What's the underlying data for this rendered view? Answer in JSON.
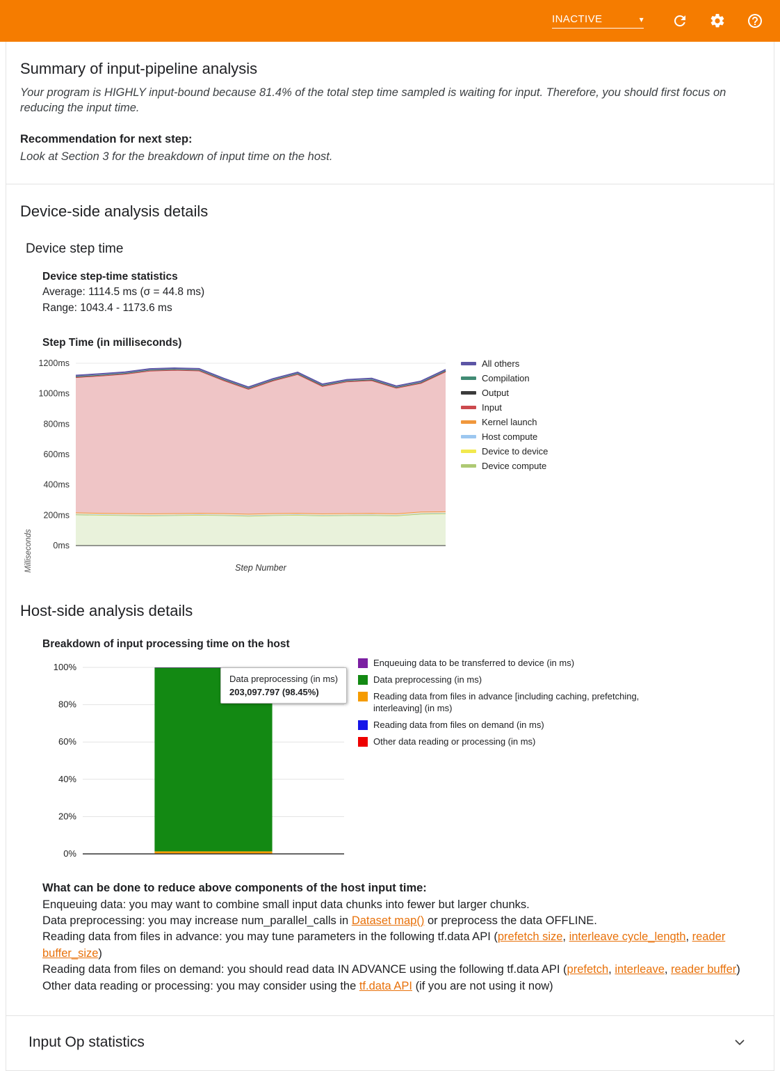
{
  "colors": {
    "toolbar": "#f57c00",
    "link": "#e8710a",
    "divider": "#e3e3e3"
  },
  "header": {
    "status": "INACTIVE",
    "icons": {
      "caret": "▾",
      "refresh": "circular-arrow",
      "settings": "gear",
      "help": "question-circle"
    }
  },
  "summary": {
    "title": "Summary of input-pipeline analysis",
    "conclusion": "Your program is HIGHLY input-bound because 81.4% of the total step time sampled is waiting for input. Therefore, you should first focus on reducing the input time.",
    "recommendation_label": "Recommendation for next step:",
    "recommendation": "Look at Section 3 for the breakdown of input time on the host."
  },
  "device_side": {
    "title": "Device-side analysis details",
    "subtitle": "Device step time",
    "stats_title": "Device step-time statistics",
    "average_line": "Average: 1114.5 ms (σ = 44.8 ms)",
    "range_line": "Range: 1043.4 - 1173.6 ms"
  },
  "host_side": {
    "title": "Host-side analysis details",
    "tooltip": {
      "label": "Data preprocessing (in ms)",
      "value": "203,097.797 (98.45%)"
    },
    "advice_title": "What can be done to reduce above components of the host input time:",
    "advice_lines": [
      {
        "segments": [
          {
            "t": "Enqueuing data: you may want to combine small input data chunks into fewer but larger chunks."
          }
        ]
      },
      {
        "segments": [
          {
            "t": "Data preprocessing: you may increase num_parallel_calls in "
          },
          {
            "t": "Dataset map()",
            "link": true
          },
          {
            "t": " or preprocess the data OFFLINE."
          }
        ]
      },
      {
        "segments": [
          {
            "t": "Reading data from files in advance: you may tune parameters in the following tf.data API ("
          },
          {
            "t": "prefetch size",
            "link": true
          },
          {
            "t": ", "
          },
          {
            "t": "interleave cycle_length",
            "link": true
          },
          {
            "t": ", "
          },
          {
            "t": "reader buffer_size",
            "link": true
          },
          {
            "t": ")"
          }
        ]
      },
      {
        "segments": [
          {
            "t": "Reading data from files on demand: you should read data IN ADVANCE using the following tf.data API ("
          },
          {
            "t": "prefetch",
            "link": true
          },
          {
            "t": ", "
          },
          {
            "t": "interleave",
            "link": true
          },
          {
            "t": ", "
          },
          {
            "t": "reader buffer",
            "link": true
          },
          {
            "t": ")"
          }
        ]
      },
      {
        "segments": [
          {
            "t": "Other data reading or processing: you may consider using the "
          },
          {
            "t": "tf.data API",
            "link": true
          },
          {
            "t": " (if you are not using it now)"
          }
        ]
      }
    ]
  },
  "input_op": {
    "title": "Input Op statistics"
  },
  "chart_data": [
    {
      "type": "area",
      "title": "Step Time (in milliseconds)",
      "xlabel": "Step Number",
      "ylabel": "Milliseconds",
      "ylim": [
        0,
        1200
      ],
      "ytick_step": 200,
      "ytick_suffix": "ms",
      "grid": true,
      "legend_position": "right",
      "x": [
        1,
        2,
        3,
        4,
        5,
        6,
        7,
        8,
        9,
        10,
        11,
        12,
        13,
        14,
        15,
        16
      ],
      "series_bottom_up": [
        {
          "name": "Device compute",
          "color": "#aec973",
          "fill": "#e9f2db",
          "lw": 2,
          "values": [
            205,
            202,
            200,
            198,
            200,
            202,
            200,
            196,
            200,
            202,
            198,
            200,
            201,
            198,
            210,
            212
          ]
        },
        {
          "name": "Device to device",
          "color": "#f2e94e",
          "fill": "#fcf9d4",
          "lw": 1.5,
          "values": [
            1,
            1,
            1,
            1,
            1,
            1,
            1,
            1,
            1,
            1,
            1,
            1,
            1,
            1,
            1,
            1
          ]
        },
        {
          "name": "Host compute",
          "color": "#9cc7f0",
          "fill": "#ddeefc",
          "lw": 1.5,
          "values": [
            2,
            2,
            2,
            2,
            2,
            2,
            2,
            2,
            2,
            2,
            2,
            2,
            2,
            2,
            2,
            2
          ]
        },
        {
          "name": "Kernel launch",
          "color": "#f0973c",
          "fill": "#fbe6cd",
          "lw": 2,
          "values": [
            10,
            10,
            10,
            10,
            10,
            10,
            10,
            10,
            10,
            10,
            10,
            10,
            10,
            10,
            10,
            10
          ]
        },
        {
          "name": "Input",
          "color": "#cc4a4e",
          "fill": "#efc5c6",
          "lw": 2,
          "values": [
            890,
            903,
            917,
            940,
            943,
            937,
            875,
            822,
            873,
            913,
            839,
            867,
            874,
            827,
            847,
            921
          ]
        },
        {
          "name": "Output",
          "color": "#3b3b3b",
          "fill": "#dcdcdc",
          "lw": 1.5,
          "values": [
            4,
            4,
            4,
            4,
            4,
            4,
            4,
            4,
            4,
            4,
            4,
            4,
            4,
            4,
            4,
            4
          ]
        },
        {
          "name": "Compilation",
          "color": "#418b74",
          "fill": "#d7e8e2",
          "lw": 1.5,
          "values": [
            2,
            2,
            2,
            2,
            2,
            2,
            2,
            2,
            2,
            2,
            2,
            2,
            2,
            2,
            2,
            2
          ]
        },
        {
          "name": "All others",
          "color": "#5c55a5",
          "fill": "#dbd8ec",
          "lw": 2,
          "values": [
            6,
            6,
            6,
            6,
            6,
            6,
            6,
            6,
            6,
            6,
            6,
            6,
            6,
            6,
            6,
            6
          ]
        }
      ]
    },
    {
      "type": "bar",
      "title": "Breakdown of input processing time on the host",
      "stacked_percent": true,
      "ylim": [
        0,
        100
      ],
      "ytick_step": 20,
      "ytick_suffix": "%",
      "bar_center": 0.5,
      "bar_width": 0.45,
      "series_bottom_up": [
        {
          "name": "Other data reading or processing (in ms)",
          "color": "#ee0000",
          "value": 0.1
        },
        {
          "name": "Reading data from files on demand (in ms)",
          "color": "#1515e8",
          "value": 0.05
        },
        {
          "name": "Reading data from files in advance [including caching, prefetching, interleaving] (in ms)",
          "color": "#f59b00",
          "value": 1.2
        },
        {
          "name": "Data preprocessing (in ms)",
          "color": "#138913",
          "value": 98.45
        },
        {
          "name": "Enqueuing data to be transferred to device (in ms)",
          "color": "#7b1fa2",
          "value": 0.2
        }
      ]
    }
  ]
}
